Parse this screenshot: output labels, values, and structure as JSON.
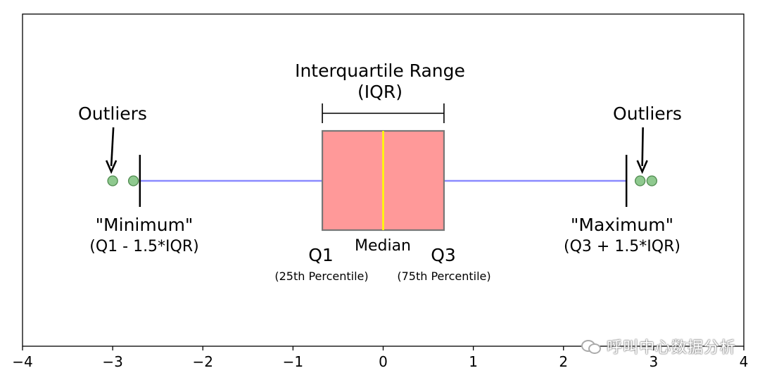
{
  "chart_data": {
    "type": "boxplot",
    "xlim": [
      -4,
      4
    ],
    "xticks": [
      "−4",
      "−3",
      "−2",
      "−1",
      "0",
      "1",
      "2",
      "3",
      "4"
    ],
    "xtick_values": [
      -4,
      -3,
      -2,
      -1,
      0,
      1,
      2,
      3,
      4
    ],
    "box": {
      "q1": -0.6745,
      "median": 0,
      "q3": 0.6745,
      "whisker_low": -2.698,
      "whisker_high": 2.698
    },
    "outliers": [
      -3.0,
      -2.77,
      2.85,
      2.98
    ],
    "colors": {
      "box_fill": "#ff9999",
      "box_edge": "#777777",
      "median": "#ffff00",
      "whisker": "#8a8aff",
      "outlier": "#8fc98f",
      "outlier_edge": "#4e8a4e"
    },
    "annotations": {
      "iqr_title": "Interquartile Range",
      "iqr_sub": "(IQR)",
      "outliers_left": "Outliers",
      "outliers_right": "Outliers",
      "min_title": "\"Minimum\"",
      "min_sub": "(Q1 - 1.5*IQR)",
      "max_title": "\"Maximum\"",
      "max_sub": "(Q3 + 1.5*IQR)",
      "q1": "Q1",
      "q1_sub": "(25th Percentile)",
      "median": "Median",
      "q3": "Q3",
      "q3_sub": "(75th Percentile)"
    }
  },
  "watermark": {
    "text": "呼叫中心数据分析"
  }
}
